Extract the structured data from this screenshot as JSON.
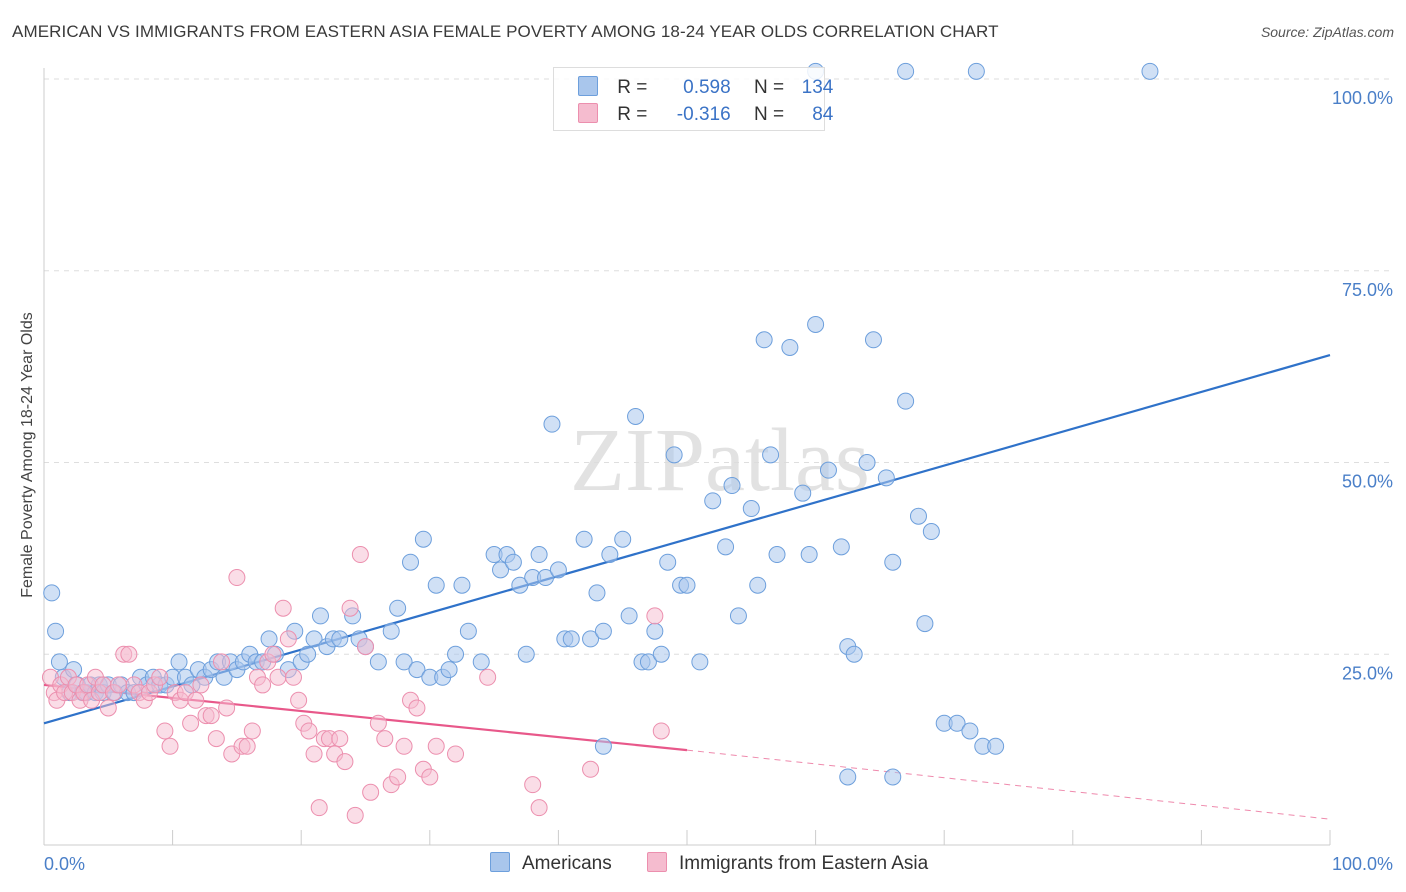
{
  "title": "AMERICAN VS IMMIGRANTS FROM EASTERN ASIA FEMALE POVERTY AMONG 18-24 YEAR OLDS CORRELATION CHART",
  "source": "Source: ZipAtlas.com",
  "watermark": "ZIPatlas",
  "colors": {
    "american": "#6d9fdc",
    "american_fill": "#a9c6ec",
    "american_line": "#2f72c9",
    "immigrant": "#ec8fae",
    "immigrant_fill": "#f5bccf",
    "immigrant_line": "#e8588a",
    "tick_text": "#4a7fc8"
  },
  "legend": {
    "r_label": "R =",
    "n_label": "N =",
    "rows": [
      {
        "r": "0.598",
        "n": "134"
      },
      {
        "r": "-0.316",
        "n": "84"
      }
    ]
  },
  "bottom_legend": [
    "Americans",
    "Immigrants from Eastern Asia"
  ],
  "chart_data": {
    "type": "scatter",
    "title": "AMERICAN VS IMMIGRANTS FROM EASTERN ASIA FEMALE POVERTY AMONG 18-24 YEAR OLDS CORRELATION CHART",
    "xlabel": "",
    "ylabel": "Female Poverty Among 18-24 Year Olds",
    "xlim": [
      0,
      100
    ],
    "ylim": [
      0,
      105
    ],
    "x_tick_labels": [
      "0.0%",
      "100.0%"
    ],
    "y_ticks": [
      25,
      50,
      75,
      100
    ],
    "y_tick_labels": [
      "25.0%",
      "50.0%",
      "75.0%",
      "100.0%"
    ],
    "grid": true,
    "legend_position": "top-center",
    "series": [
      {
        "name": "Americans",
        "r": 0.598,
        "n": 134,
        "trend": {
          "x": [
            0,
            100
          ],
          "y": [
            16,
            64
          ]
        },
        "points": [
          [
            0.6,
            33
          ],
          [
            0.9,
            28
          ],
          [
            1.2,
            24
          ],
          [
            1.5,
            22
          ],
          [
            2.0,
            20
          ],
          [
            2.3,
            23
          ],
          [
            2.6,
            21
          ],
          [
            3.0,
            20
          ],
          [
            3.3,
            20
          ],
          [
            3.6,
            21
          ],
          [
            4.0,
            20
          ],
          [
            4.3,
            21
          ],
          [
            4.6,
            20
          ],
          [
            5.0,
            21
          ],
          [
            5.5,
            20
          ],
          [
            6.0,
            21
          ],
          [
            6.5,
            20
          ],
          [
            7.0,
            20
          ],
          [
            7.5,
            22
          ],
          [
            8.0,
            21
          ],
          [
            8.5,
            22
          ],
          [
            9.0,
            21
          ],
          [
            9.5,
            21
          ],
          [
            10,
            22
          ],
          [
            10.5,
            24
          ],
          [
            11,
            22
          ],
          [
            11.5,
            21
          ],
          [
            12,
            23
          ],
          [
            12.5,
            22
          ],
          [
            13,
            23
          ],
          [
            13.5,
            24
          ],
          [
            14,
            22
          ],
          [
            14.5,
            24
          ],
          [
            15,
            23
          ],
          [
            15.5,
            24
          ],
          [
            16,
            25
          ],
          [
            16.5,
            24
          ],
          [
            17,
            24
          ],
          [
            17.5,
            27
          ],
          [
            18,
            25
          ],
          [
            19,
            23
          ],
          [
            19.5,
            28
          ],
          [
            20,
            24
          ],
          [
            20.5,
            25
          ],
          [
            21,
            27
          ],
          [
            21.5,
            30
          ],
          [
            22,
            26
          ],
          [
            22.5,
            27
          ],
          [
            23,
            27
          ],
          [
            24,
            30
          ],
          [
            24.5,
            27
          ],
          [
            25,
            26
          ],
          [
            26,
            24
          ],
          [
            27,
            28
          ],
          [
            27.5,
            31
          ],
          [
            28,
            24
          ],
          [
            28.5,
            37
          ],
          [
            29,
            23
          ],
          [
            29.5,
            40
          ],
          [
            30,
            22
          ],
          [
            30.5,
            34
          ],
          [
            31,
            22
          ],
          [
            31.5,
            23
          ],
          [
            32,
            25
          ],
          [
            32.5,
            34
          ],
          [
            33,
            28
          ],
          [
            34,
            24
          ],
          [
            35,
            38
          ],
          [
            35.5,
            36
          ],
          [
            36,
            38
          ],
          [
            36.5,
            37
          ],
          [
            37,
            34
          ],
          [
            37.5,
            25
          ],
          [
            38,
            35
          ],
          [
            38.5,
            38
          ],
          [
            39,
            35
          ],
          [
            39.5,
            55
          ],
          [
            40,
            36
          ],
          [
            40.5,
            27
          ],
          [
            41,
            27
          ],
          [
            42,
            40
          ],
          [
            42.5,
            27
          ],
          [
            43,
            33
          ],
          [
            43.5,
            28
          ],
          [
            44,
            38
          ],
          [
            45,
            40
          ],
          [
            45.5,
            30
          ],
          [
            46,
            56
          ],
          [
            46.5,
            24
          ],
          [
            47,
            24
          ],
          [
            47.5,
            28
          ],
          [
            48,
            25
          ],
          [
            48.5,
            37
          ],
          [
            49,
            51
          ],
          [
            49.5,
            34
          ],
          [
            50,
            34
          ],
          [
            51,
            24
          ],
          [
            52,
            45
          ],
          [
            53,
            39
          ],
          [
            53.5,
            47
          ],
          [
            54,
            30
          ],
          [
            55,
            44
          ],
          [
            55.5,
            34
          ],
          [
            56,
            66
          ],
          [
            56.5,
            51
          ],
          [
            57,
            38
          ],
          [
            58,
            65
          ],
          [
            59,
            46
          ],
          [
            59.5,
            38
          ],
          [
            60,
            68
          ],
          [
            61,
            49
          ],
          [
            62,
            39
          ],
          [
            62.5,
            26
          ],
          [
            63,
            25
          ],
          [
            64,
            50
          ],
          [
            64.5,
            66
          ],
          [
            65.5,
            48
          ],
          [
            66,
            37
          ],
          [
            67,
            58
          ],
          [
            68,
            43
          ],
          [
            68.5,
            29
          ],
          [
            69,
            41
          ],
          [
            70,
            16
          ],
          [
            71,
            16
          ],
          [
            72,
            15
          ],
          [
            73,
            13
          ],
          [
            60,
            101
          ],
          [
            67,
            101
          ],
          [
            72.5,
            101
          ],
          [
            86,
            101
          ],
          [
            43.5,
            13
          ],
          [
            62.5,
            9
          ],
          [
            66,
            9
          ],
          [
            74,
            13
          ]
        ]
      },
      {
        "name": "Immigrants from Eastern Asia",
        "r": -0.316,
        "n": 84,
        "trend": {
          "x": [
            0,
            50
          ],
          "y": [
            21,
            12.5
          ]
        },
        "trend_dashed": {
          "x": [
            50,
            100
          ],
          "y": [
            12.5,
            3.5
          ]
        },
        "points": [
          [
            0.5,
            22
          ],
          [
            0.8,
            20
          ],
          [
            1.0,
            19
          ],
          [
            1.3,
            21
          ],
          [
            1.6,
            20
          ],
          [
            1.9,
            22
          ],
          [
            2.2,
            20
          ],
          [
            2.5,
            21
          ],
          [
            2.8,
            19
          ],
          [
            3.1,
            20
          ],
          [
            3.4,
            21
          ],
          [
            3.7,
            19
          ],
          [
            4.0,
            22
          ],
          [
            4.3,
            20
          ],
          [
            4.6,
            21
          ],
          [
            5.0,
            18
          ],
          [
            5.4,
            20
          ],
          [
            5.8,
            21
          ],
          [
            6.2,
            25
          ],
          [
            6.6,
            25
          ],
          [
            7.0,
            21
          ],
          [
            7.4,
            20
          ],
          [
            7.8,
            19
          ],
          [
            8.2,
            20
          ],
          [
            8.6,
            21
          ],
          [
            9.0,
            22
          ],
          [
            9.4,
            15
          ],
          [
            9.8,
            13
          ],
          [
            10.2,
            20
          ],
          [
            10.6,
            19
          ],
          [
            11.0,
            20
          ],
          [
            11.4,
            16
          ],
          [
            11.8,
            19
          ],
          [
            12.2,
            21
          ],
          [
            12.6,
            17
          ],
          [
            13.0,
            17
          ],
          [
            13.4,
            14
          ],
          [
            13.8,
            24
          ],
          [
            14.2,
            18
          ],
          [
            14.6,
            12
          ],
          [
            15.0,
            35
          ],
          [
            15.4,
            13
          ],
          [
            15.8,
            13
          ],
          [
            16.2,
            15
          ],
          [
            16.6,
            22
          ],
          [
            17.0,
            21
          ],
          [
            17.4,
            24
          ],
          [
            17.8,
            25
          ],
          [
            18.2,
            22
          ],
          [
            18.6,
            31
          ],
          [
            19.0,
            27
          ],
          [
            19.4,
            22
          ],
          [
            19.8,
            19
          ],
          [
            20.2,
            16
          ],
          [
            20.6,
            15
          ],
          [
            21.0,
            12
          ],
          [
            21.4,
            5
          ],
          [
            21.8,
            14
          ],
          [
            22.2,
            14
          ],
          [
            22.6,
            12
          ],
          [
            23.0,
            14
          ],
          [
            23.4,
            11
          ],
          [
            23.8,
            31
          ],
          [
            24.2,
            4
          ],
          [
            24.6,
            38
          ],
          [
            25.0,
            26
          ],
          [
            25.4,
            7
          ],
          [
            26.0,
            16
          ],
          [
            26.5,
            14
          ],
          [
            27.0,
            8
          ],
          [
            27.5,
            9
          ],
          [
            28.0,
            13
          ],
          [
            28.5,
            19
          ],
          [
            29.0,
            18
          ],
          [
            29.5,
            10
          ],
          [
            30.0,
            9
          ],
          [
            32.0,
            12
          ],
          [
            34.5,
            22
          ],
          [
            38.0,
            8
          ],
          [
            38.5,
            5
          ],
          [
            42.5,
            10
          ],
          [
            47.5,
            30
          ],
          [
            48.0,
            15
          ],
          [
            30.5,
            13
          ]
        ]
      }
    ]
  }
}
